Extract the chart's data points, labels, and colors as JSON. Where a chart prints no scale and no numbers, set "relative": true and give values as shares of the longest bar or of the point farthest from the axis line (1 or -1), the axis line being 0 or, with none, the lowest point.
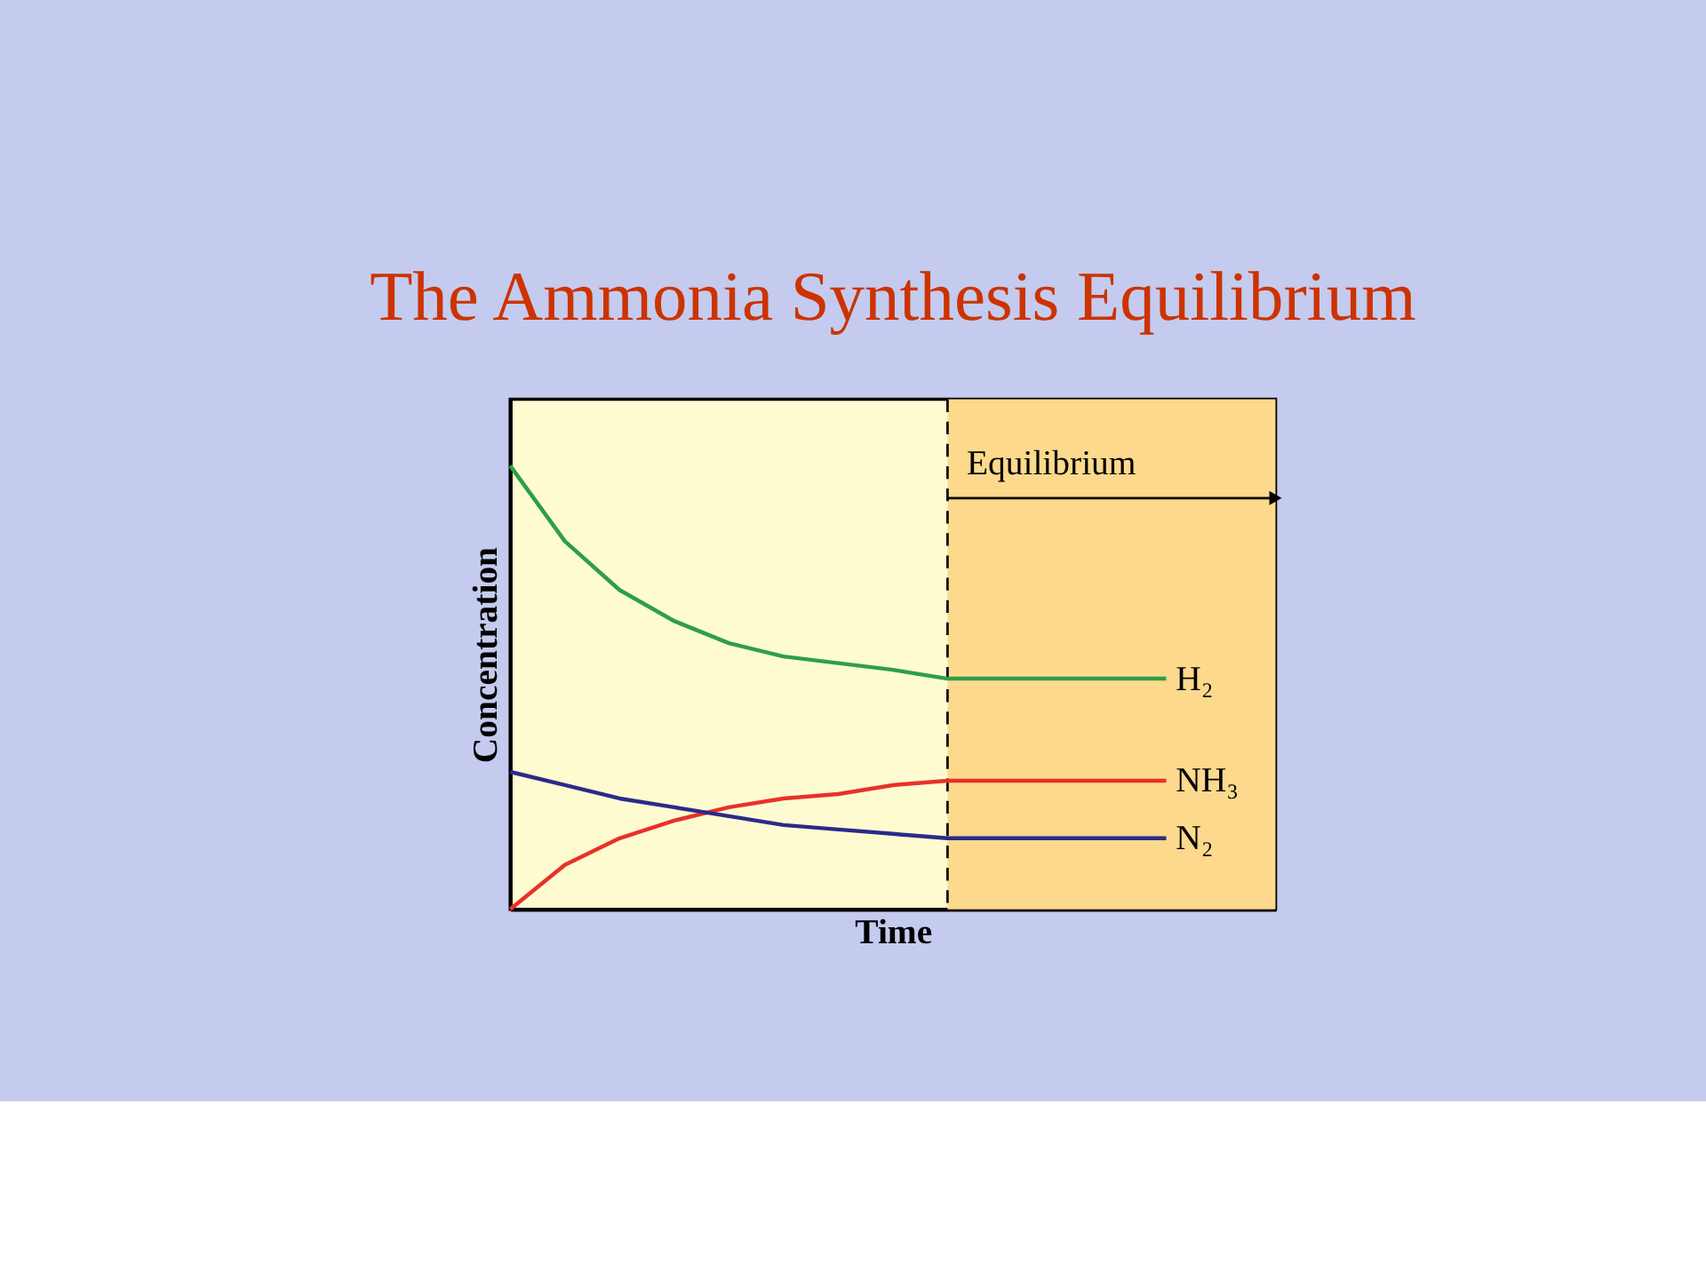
{
  "chart_data": {
    "type": "line",
    "title": "The Ammonia Synthesis Equilibrium",
    "xlabel": "Time",
    "ylabel": "Concentration",
    "relative": true,
    "tick_labels": false,
    "grid": false,
    "categories": [
      null,
      null,
      null,
      null,
      null,
      null,
      null,
      null,
      null,
      null,
      null,
      null,
      null
    ],
    "series": [
      {
        "name": "H₂",
        "color": "#2e9e4a",
        "values": [
          1.0,
          0.83,
          0.72,
          0.65,
          0.6,
          0.57,
          0.555,
          0.54,
          0.52,
          0.52,
          0.52,
          0.52,
          0.52
        ]
      },
      {
        "name": "NH₃",
        "color": "#e8312a",
        "values": [
          0.0,
          0.1,
          0.16,
          0.2,
          0.23,
          0.25,
          0.26,
          0.28,
          0.29,
          0.29,
          0.29,
          0.29,
          0.29
        ]
      },
      {
        "name": "N₂",
        "color": "#2a2a8a",
        "values": [
          0.31,
          0.28,
          0.25,
          0.23,
          0.21,
          0.19,
          0.18,
          0.17,
          0.16,
          0.16,
          0.16,
          0.16,
          0.16
        ]
      }
    ],
    "annotations": [
      "Equilibrium"
    ]
  }
}
